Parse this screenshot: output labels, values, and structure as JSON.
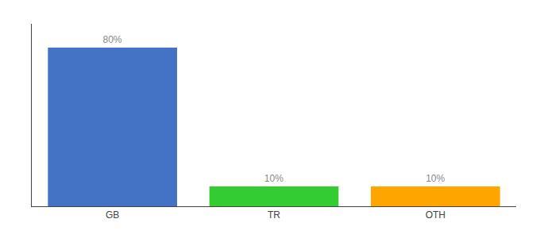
{
  "chart_data": {
    "type": "bar",
    "categories": [
      "GB",
      "TR",
      "OTH"
    ],
    "values": [
      80,
      10,
      10
    ],
    "value_labels": [
      "80%",
      "10%",
      "10%"
    ],
    "data_labels": true,
    "colors": [
      "#4472C4",
      "#33CC33",
      "#FFA500"
    ],
    "ylim": [
      0,
      92
    ],
    "grid": false,
    "tick_labels": "x"
  }
}
